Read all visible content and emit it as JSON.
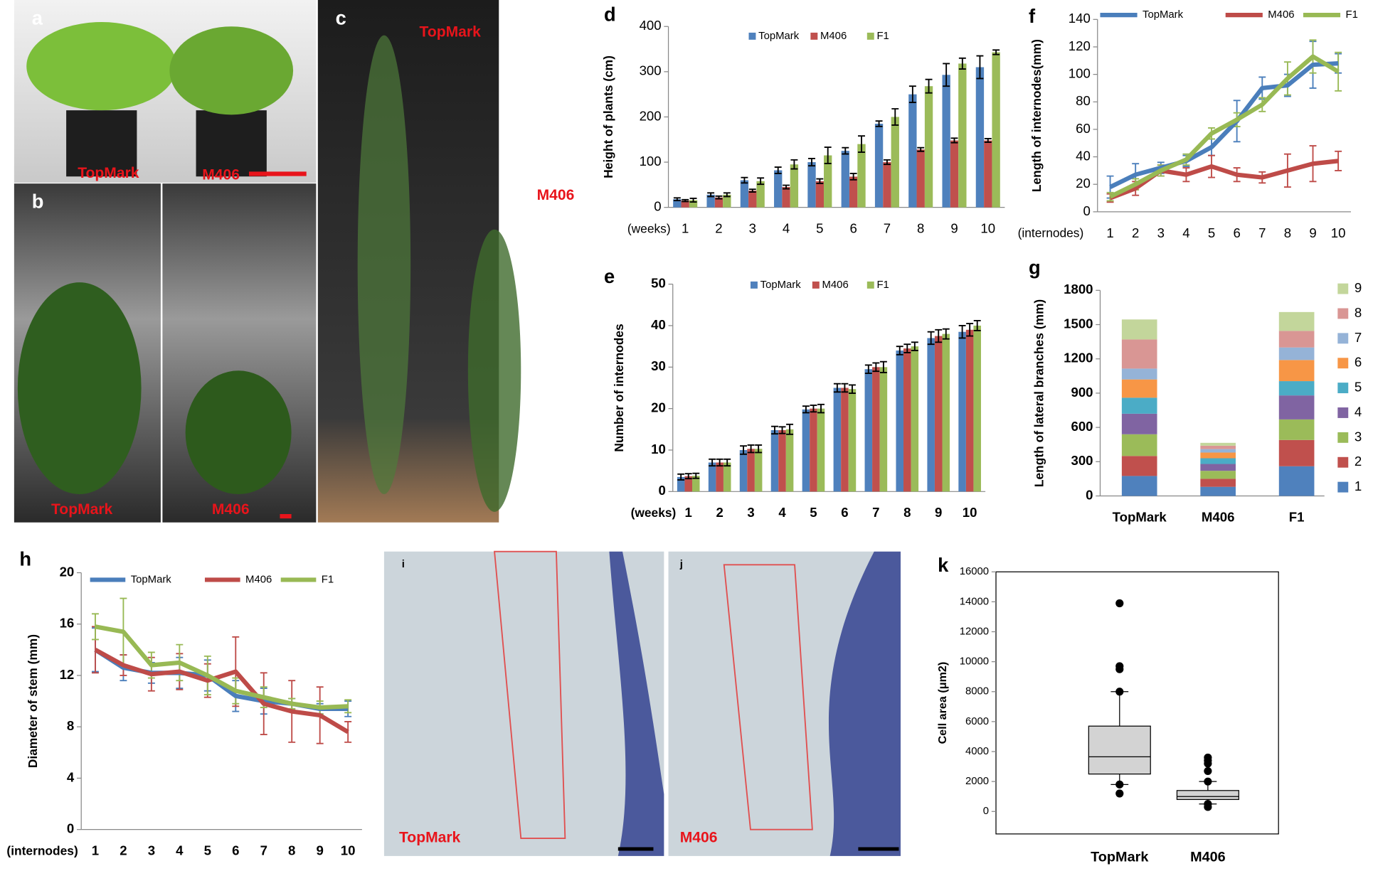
{
  "photos": {
    "a": {
      "label": "a",
      "texts": [
        "TopMark",
        "M406"
      ]
    },
    "b": {
      "label": "b",
      "texts": [
        "TopMark",
        "M406"
      ]
    },
    "c": {
      "label": "c",
      "texts": [
        "TopMark",
        "M406"
      ]
    },
    "i": {
      "label": "i",
      "texts": [
        "TopMark"
      ]
    },
    "j": {
      "label": "j",
      "texts": [
        "M406"
      ]
    }
  },
  "chart_data": [
    {
      "type": "bar",
      "panel": "d",
      "ylabel": "Height of  plants (cm)",
      "xlabel": "(weeks)",
      "categories": [
        "1",
        "2",
        "3",
        "4",
        "5",
        "6",
        "7",
        "8",
        "9",
        "10"
      ],
      "ylim": [
        0,
        400
      ],
      "yticks": [
        0,
        100,
        200,
        300,
        400
      ],
      "series": [
        {
          "name": "TopMark",
          "color": "#4f81bd",
          "values": [
            18,
            28,
            60,
            82,
            100,
            125,
            185,
            250,
            293,
            310
          ],
          "errors": [
            3,
            4,
            6,
            7,
            8,
            7,
            6,
            18,
            25,
            25
          ]
        },
        {
          "name": "M406",
          "color": "#c0504d",
          "values": [
            15,
            22,
            37,
            45,
            58,
            68,
            100,
            128,
            148,
            148
          ],
          "errors": [
            2,
            3,
            3,
            4,
            5,
            7,
            5,
            4,
            5,
            4
          ]
        },
        {
          "name": "F1",
          "color": "#9bbb59",
          "values": [
            16,
            28,
            58,
            95,
            115,
            140,
            200,
            268,
            318,
            343
          ],
          "errors": [
            4,
            4,
            7,
            10,
            18,
            18,
            18,
            15,
            12,
            5
          ]
        }
      ]
    },
    {
      "type": "bar",
      "panel": "e",
      "ylabel": "Number of  internodes",
      "xlabel": "(weeks)",
      "categories": [
        "1",
        "2",
        "3",
        "4",
        "5",
        "6",
        "7",
        "8",
        "9",
        "10"
      ],
      "ylim": [
        0,
        50
      ],
      "yticks": [
        0,
        10,
        20,
        30,
        40,
        50
      ],
      "series": [
        {
          "name": "TopMark",
          "color": "#4f81bd",
          "values": [
            3.5,
            7,
            10,
            14.8,
            19.8,
            25,
            29.5,
            34,
            37,
            38.5
          ],
          "errors": [
            0.7,
            0.8,
            1,
            0.9,
            0.8,
            1,
            1,
            1,
            1.5,
            1.5
          ]
        },
        {
          "name": "M406",
          "color": "#c0504d",
          "values": [
            3.7,
            7,
            10.3,
            14.8,
            20,
            25,
            30,
            34.5,
            37.5,
            39
          ],
          "errors": [
            0.6,
            0.8,
            0.9,
            0.8,
            0.8,
            1,
            1,
            1,
            1.5,
            1.5
          ]
        },
        {
          "name": "F1",
          "color": "#9bbb59",
          "values": [
            3.8,
            7,
            10.3,
            15,
            20,
            24.7,
            30,
            35,
            38,
            40
          ],
          "errors": [
            0.6,
            0.8,
            0.9,
            1.2,
            1,
            1,
            1.3,
            1,
            1.2,
            1.2
          ]
        }
      ]
    },
    {
      "type": "line",
      "panel": "f",
      "ylabel": "Length of internodes(mm)",
      "xlabel": "(internodes)",
      "categories": [
        "1",
        "2",
        "3",
        "4",
        "5",
        "6",
        "7",
        "8",
        "9",
        "10"
      ],
      "ylim": [
        0,
        140
      ],
      "yticks": [
        0,
        20,
        40,
        60,
        80,
        100,
        120,
        140
      ],
      "series": [
        {
          "name": "TopMark",
          "color": "#4a7ebb",
          "values": [
            18,
            27,
            32,
            37,
            47,
            66,
            90,
            92,
            107,
            108
          ],
          "errors": [
            8,
            8,
            4,
            4,
            6,
            15,
            8,
            8,
            17,
            7
          ]
        },
        {
          "name": "M406",
          "color": "#be4b48",
          "values": [
            10,
            17,
            30,
            27,
            33,
            27,
            25,
            30,
            35,
            37
          ],
          "errors": [
            3,
            5,
            4,
            5,
            8,
            5,
            4,
            12,
            13,
            7
          ]
        },
        {
          "name": "F1",
          "color": "#98b954",
          "values": [
            11,
            20,
            30,
            38,
            57,
            67,
            78,
            97,
            113,
            102
          ],
          "errors": [
            3,
            4,
            4,
            4,
            4,
            5,
            5,
            12,
            12,
            14
          ]
        }
      ]
    },
    {
      "type": "bar",
      "stacked": true,
      "panel": "g",
      "ylabel": "Length of lateral branches (mm)",
      "categories": [
        "TopMark",
        "M406",
        "F1"
      ],
      "ylim": [
        0,
        1800
      ],
      "yticks": [
        0,
        300,
        600,
        900,
        1200,
        1500,
        1800
      ],
      "series": [
        {
          "name": "1",
          "color": "#4f81bd",
          "values": [
            175,
            80,
            260
          ]
        },
        {
          "name": "2",
          "color": "#c0504d",
          "values": [
            175,
            70,
            230
          ]
        },
        {
          "name": "3",
          "color": "#9bbb59",
          "values": [
            190,
            70,
            180
          ]
        },
        {
          "name": "4",
          "color": "#8064a2",
          "values": [
            180,
            60,
            210
          ]
        },
        {
          "name": "5",
          "color": "#4bacc6",
          "values": [
            140,
            50,
            125
          ]
        },
        {
          "name": "6",
          "color": "#f79646",
          "values": [
            160,
            50,
            185
          ]
        },
        {
          "name": "7",
          "color": "#95b3d7",
          "values": [
            95,
            30,
            110
          ]
        },
        {
          "name": "8",
          "color": "#d99694",
          "values": [
            255,
            30,
            145
          ]
        },
        {
          "name": "9",
          "color": "#c3d69b",
          "values": [
            175,
            25,
            165
          ]
        }
      ]
    },
    {
      "type": "line",
      "panel": "h",
      "ylabel": "Diameter of stem (mm)",
      "xlabel": "(internodes)",
      "categories": [
        "1",
        "2",
        "3",
        "4",
        "5",
        "6",
        "7",
        "8",
        "9",
        "10"
      ],
      "ylim": [
        0,
        20
      ],
      "yticks": [
        0,
        4,
        8,
        12,
        16,
        20
      ],
      "series": [
        {
          "name": "TopMark",
          "color": "#4a7ebb",
          "values": [
            14,
            12.6,
            12.2,
            12.2,
            12,
            10.4,
            10,
            9.8,
            9.4,
            9.4
          ],
          "errors": [
            1.7,
            1,
            0.8,
            1.2,
            1.2,
            1.2,
            1,
            0.4,
            0.4,
            0.6
          ]
        },
        {
          "name": "M406",
          "color": "#be4b48",
          "values": [
            14,
            12.8,
            12.1,
            12.3,
            11.6,
            12.3,
            9.8,
            9.2,
            8.9,
            7.6
          ],
          "errors": [
            1.8,
            0.8,
            1.3,
            1.4,
            1.3,
            2.7,
            2.4,
            2.4,
            2.2,
            0.8
          ]
        },
        {
          "name": "F1",
          "color": "#98b954",
          "values": [
            15.8,
            15.4,
            12.8,
            13,
            12,
            10.8,
            10.3,
            9.8,
            9.5,
            9.6
          ],
          "errors": [
            1,
            2.6,
            1,
            1.4,
            1.5,
            1,
            0.8,
            0.4,
            0.5,
            0.5
          ]
        }
      ]
    },
    {
      "type": "box",
      "panel": "k",
      "ylabel": "Cell area (μm2)",
      "categories": [
        "TopMark",
        "M406"
      ],
      "ylim": [
        -1500,
        16000
      ],
      "yticks": [
        0,
        2000,
        4000,
        6000,
        8000,
        10000,
        12000,
        14000,
        16000
      ],
      "color": "#d3d3d3",
      "boxes": [
        {
          "whisker_low": 1800,
          "q1": 2500,
          "median": 3650,
          "q3": 5700,
          "whisker_high": 8000,
          "outliers": [
            13900,
            9700,
            9500,
            8000,
            1800,
            1200
          ]
        },
        {
          "whisker_low": 500,
          "q1": 800,
          "median": 1000,
          "q3": 1400,
          "whisker_high": 2000,
          "outliers": [
            3600,
            3400,
            3200,
            2700,
            2000,
            500,
            300
          ]
        }
      ]
    }
  ]
}
